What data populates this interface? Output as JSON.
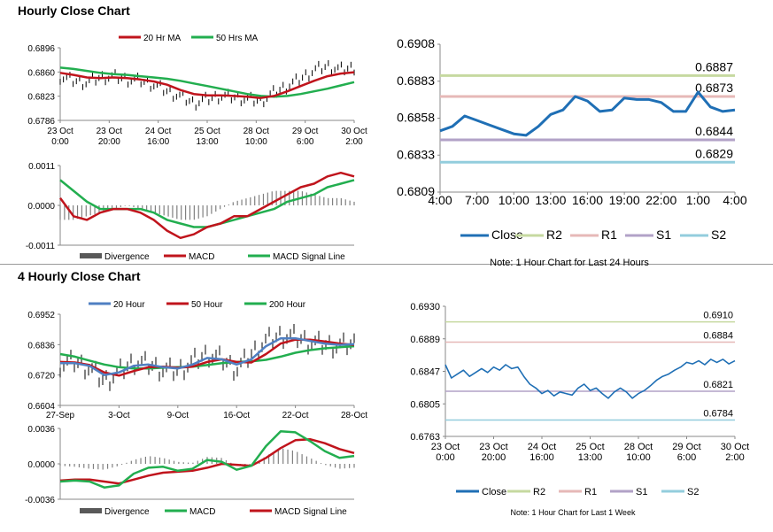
{
  "sections": {
    "hourly_title": "Hourly Close Chart",
    "four_hourly_title": "4 Hourly Close Chart"
  },
  "colors": {
    "ma_red": "#c0141c",
    "ma_green": "#22ae4f",
    "blue": "#4f7fc2",
    "dark_blue": "#1f6fb5",
    "r2": "#c6d9a0",
    "r1": "#e6b8b7",
    "s1": "#b2a2c7",
    "s2": "#93cddd",
    "bars": "#808080",
    "candle": "#000000"
  },
  "chart_data": [
    {
      "id": "hourly_ma",
      "type": "line",
      "legend": [
        "20 Hr MA",
        "50 Hrs MA"
      ],
      "ylim": [
        0.6786,
        0.6896
      ],
      "yticks": [
        "0.6896",
        "0.6860",
        "0.6823",
        "0.6786"
      ],
      "xticks": [
        [
          "23 Oct",
          "0:00"
        ],
        [
          "23 Oct",
          "20:00"
        ],
        [
          "24 Oct",
          "16:00"
        ],
        [
          "25 Oct",
          "13:00"
        ],
        [
          "28 Oct",
          "10:00"
        ],
        [
          "29 Oct",
          "6:00"
        ],
        [
          "30 Oct",
          "2:00"
        ]
      ],
      "series": [
        {
          "name": "Price",
          "values": [
            0.6852,
            0.6846,
            0.6843,
            0.6851,
            0.6852,
            0.6848,
            0.6846,
            0.684,
            0.683,
            0.6822,
            0.6812,
            0.6818,
            0.6823,
            0.6821,
            0.6818,
            0.6815,
            0.6828,
            0.6838,
            0.6849,
            0.6862,
            0.6868,
            0.6863,
            0.6866
          ]
        },
        {
          "name": "20 Hr MA",
          "values": [
            0.6858,
            0.6855,
            0.6851,
            0.685,
            0.6851,
            0.685,
            0.6848,
            0.6845,
            0.684,
            0.6832,
            0.6826,
            0.6824,
            0.6824,
            0.6823,
            0.6822,
            0.682,
            0.6823,
            0.683,
            0.6838,
            0.6846,
            0.6853,
            0.6857,
            0.6859
          ]
        },
        {
          "name": "50 Hrs MA",
          "values": [
            0.6866,
            0.6864,
            0.6861,
            0.6858,
            0.6856,
            0.6855,
            0.6853,
            0.6851,
            0.6849,
            0.6846,
            0.6842,
            0.6838,
            0.6834,
            0.683,
            0.6826,
            0.6823,
            0.6822,
            0.6823,
            0.6826,
            0.683,
            0.6834,
            0.6839,
            0.6844
          ]
        }
      ]
    },
    {
      "id": "hourly_macd",
      "type": "line",
      "legend": [
        "Divergence",
        "MACD",
        "MACD Signal Line"
      ],
      "ylim": [
        -0.0011,
        0.0011
      ],
      "yticks": [
        "0.0011",
        "0.0000",
        "-0.0011"
      ],
      "series": [
        {
          "name": "Divergence",
          "values": [
            -0.0004,
            -0.0004,
            -0.0003,
            -0.0002,
            -0.0001,
            0.0,
            -0.0001,
            -0.0002,
            -0.0003,
            -0.0004,
            -0.0004,
            -0.0003,
            -0.0001,
            0.0001,
            0.0002,
            0.0003,
            0.0004,
            0.0004,
            0.0004,
            0.0003,
            0.0002,
            0.0002,
            0.0001
          ]
        },
        {
          "name": "MACD",
          "values": [
            0.0002,
            -0.0003,
            -0.0004,
            -0.0002,
            -0.0001,
            -0.0001,
            -0.0002,
            -0.0004,
            -0.0007,
            -0.0009,
            -0.0008,
            -0.0006,
            -0.0005,
            -0.0003,
            -0.0003,
            -0.0001,
            0.0001,
            0.0003,
            0.0005,
            0.0006,
            0.0008,
            0.0009,
            0.0008
          ]
        },
        {
          "name": "MACD Signal Line",
          "values": [
            0.0007,
            0.0004,
            0.0001,
            -0.0001,
            -0.0001,
            -0.0001,
            -0.0001,
            -0.0002,
            -0.0004,
            -0.0005,
            -0.0006,
            -0.0006,
            -0.0005,
            -0.0004,
            -0.0003,
            -0.0002,
            -0.0001,
            0.0001,
            0.0002,
            0.0003,
            0.0005,
            0.0006,
            0.0007
          ]
        }
      ]
    },
    {
      "id": "hourly_24h",
      "type": "line",
      "title_note": "Note: 1 Hour Chart for Last 24 Hours",
      "legend": [
        "Close",
        "R2",
        "R1",
        "S1",
        "S2"
      ],
      "ylim": [
        0.6809,
        0.6908
      ],
      "yticks": [
        "0.6908",
        "0.6883",
        "0.6858",
        "0.6833",
        "0.6809"
      ],
      "xticks": [
        "4:00",
        "7:00",
        "10:00",
        "13:00",
        "16:00",
        "19:00",
        "22:00",
        "1:00",
        "4:00"
      ],
      "levels": {
        "R2": 0.6887,
        "R1": 0.6873,
        "S1": 0.6844,
        "S2": 0.6829
      },
      "level_labels": {
        "R2": "0.6887",
        "R1": "0.6873",
        "S1": "0.6844",
        "S2": "0.6829"
      },
      "series": [
        {
          "name": "Close",
          "values": [
            0.685,
            0.6853,
            0.686,
            0.6857,
            0.6854,
            0.6851,
            0.6848,
            0.6847,
            0.6853,
            0.6861,
            0.6864,
            0.6873,
            0.687,
            0.6863,
            0.6864,
            0.6872,
            0.6871,
            0.6871,
            0.6869,
            0.6863,
            0.6863,
            0.6876,
            0.6866,
            0.6863,
            0.6864
          ]
        }
      ]
    },
    {
      "id": "four_hourly_ma",
      "type": "line",
      "legend": [
        "20 Hour",
        "50 Hour",
        "200 Hour"
      ],
      "ylim": [
        0.6604,
        0.6952
      ],
      "yticks": [
        "0.6952",
        "0.6836",
        "0.6720",
        "0.6604"
      ],
      "xticks": [
        "27-Sep",
        "3-Oct",
        "9-Oct",
        "16-Oct",
        "22-Oct",
        "28-Oct"
      ],
      "series": [
        {
          "name": "Price",
          "values": [
            0.676,
            0.677,
            0.6745,
            0.6695,
            0.673,
            0.677,
            0.676,
            0.674,
            0.6735,
            0.677,
            0.68,
            0.678,
            0.674,
            0.68,
            0.685,
            0.687,
            0.6865,
            0.6845,
            0.6835,
            0.683,
            0.684
          ]
        },
        {
          "name": "20 Hour",
          "values": [
            0.6765,
            0.6765,
            0.6755,
            0.672,
            0.673,
            0.6755,
            0.676,
            0.675,
            0.6745,
            0.676,
            0.6785,
            0.678,
            0.676,
            0.678,
            0.683,
            0.686,
            0.686,
            0.685,
            0.684,
            0.6835,
            0.6838
          ]
        },
        {
          "name": "50 Hour",
          "values": [
            0.677,
            0.6768,
            0.6758,
            0.673,
            0.6718,
            0.6735,
            0.675,
            0.6752,
            0.6748,
            0.6752,
            0.677,
            0.678,
            0.677,
            0.6768,
            0.68,
            0.684,
            0.6855,
            0.6855,
            0.6848,
            0.684,
            0.6835
          ]
        },
        {
          "name": "200 Hour",
          "values": [
            0.68,
            0.679,
            0.6775,
            0.676,
            0.675,
            0.6745,
            0.6745,
            0.6748,
            0.675,
            0.6752,
            0.6758,
            0.6765,
            0.677,
            0.6772,
            0.6778,
            0.679,
            0.6805,
            0.6815,
            0.6822,
            0.6826,
            0.683
          ]
        }
      ]
    },
    {
      "id": "four_hourly_macd",
      "type": "line",
      "legend": [
        "Divergence",
        "MACD",
        "MACD Signal Line"
      ],
      "ylim": [
        -0.0036,
        0.0036
      ],
      "yticks": [
        "0.0036",
        "0.0000",
        "-0.0036"
      ],
      "series": [
        {
          "name": "Divergence",
          "values": [
            -0.0002,
            -0.0003,
            -0.0005,
            -0.0006,
            -0.0002,
            0.0004,
            0.0008,
            0.0006,
            0.0002,
            0.0001,
            0.0007,
            0.0006,
            -0.0002,
            -0.0003,
            0.0008,
            0.0016,
            0.0013,
            0.0006,
            -0.0001,
            -0.0005,
            -0.0004
          ]
        },
        {
          "name": "MACD",
          "values": [
            -0.0018,
            -0.0017,
            -0.0018,
            -0.0024,
            -0.0022,
            -0.001,
            -0.0004,
            -0.0003,
            -0.0007,
            -0.0005,
            0.0004,
            0.0002,
            -0.0006,
            -0.0002,
            0.0018,
            0.0033,
            0.0032,
            0.0023,
            0.0013,
            0.0006,
            0.0008
          ]
        },
        {
          "name": "MACD Signal Line",
          "values": [
            -0.0017,
            -0.0016,
            -0.0016,
            -0.0018,
            -0.002,
            -0.0016,
            -0.0012,
            -0.0009,
            -0.0008,
            -0.0007,
            -0.0004,
            0.0,
            -0.0001,
            -0.0002,
            0.0006,
            0.0016,
            0.0024,
            0.0025,
            0.0021,
            0.0015,
            0.0011
          ]
        }
      ]
    },
    {
      "id": "four_hourly_week",
      "type": "line",
      "title_note": "Note: 1 Hour Chart for Last 1 Week",
      "legend": [
        "Close",
        "R2",
        "R1",
        "S1",
        "S2"
      ],
      "ylim": [
        0.6763,
        0.693
      ],
      "yticks": [
        "0.6930",
        "0.6889",
        "0.6847",
        "0.6805",
        "0.6763"
      ],
      "xticks": [
        [
          "23 Oct",
          "0:00"
        ],
        [
          "23 Oct",
          "20:00"
        ],
        [
          "24 Oct",
          "16:00"
        ],
        [
          "25 Oct",
          "13:00"
        ],
        [
          "28 Oct",
          "10:00"
        ],
        [
          "29 Oct",
          "6:00"
        ],
        [
          "30 Oct",
          "2:00"
        ]
      ],
      "levels": {
        "R2": 0.691,
        "R1": 0.6884,
        "S1": 0.6821,
        "S2": 0.6784
      },
      "level_labels": {
        "R2": "0.6910",
        "R1": "0.6884",
        "S1": "0.6821",
        "S2": "0.6784"
      },
      "series": [
        {
          "name": "Close",
          "values": [
            0.6855,
            0.6838,
            0.6843,
            0.6848,
            0.684,
            0.6845,
            0.685,
            0.6845,
            0.6852,
            0.6848,
            0.6855,
            0.685,
            0.6852,
            0.684,
            0.683,
            0.6825,
            0.6818,
            0.6822,
            0.6815,
            0.682,
            0.6818,
            0.6816,
            0.6825,
            0.683,
            0.6822,
            0.6825,
            0.6818,
            0.6812,
            0.682,
            0.6825,
            0.682,
            0.6812,
            0.6818,
            0.6822,
            0.6828,
            0.6835,
            0.684,
            0.6843,
            0.6848,
            0.6852,
            0.6858,
            0.6856,
            0.686,
            0.6855,
            0.6862,
            0.6858,
            0.6862,
            0.6856,
            0.686
          ]
        }
      ]
    }
  ]
}
